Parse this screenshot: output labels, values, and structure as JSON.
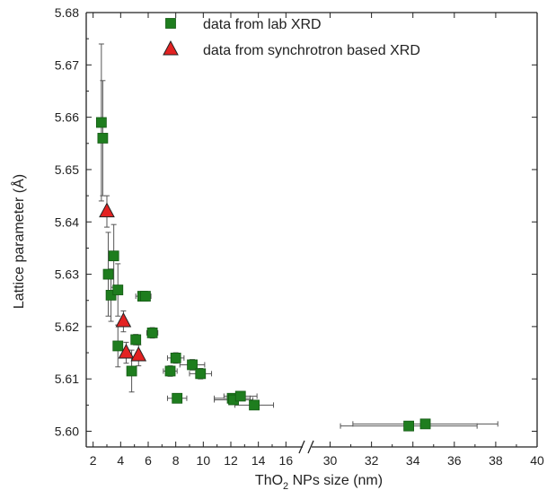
{
  "chart_data": {
    "type": "scatter",
    "title": "",
    "xlabel": {
      "prefix": "ThO",
      "subscript": "2",
      "suffix": " NPs size (nm)"
    },
    "ylabel": "Lattice parameter  (Å)",
    "x_axis_broken": true,
    "x_break_after": 16,
    "x_break_before": 30,
    "xlim_left": [
      1.5,
      16.5
    ],
    "xlim_right": [
      29.5,
      40
    ],
    "ylim": [
      5.597,
      5.68
    ],
    "x_ticks_left": [
      "2",
      "4",
      "6",
      "8",
      "10",
      "12",
      "14",
      "16"
    ],
    "x_ticks_right": [
      "30",
      "32",
      "34",
      "36",
      "38",
      "40"
    ],
    "y_ticks": [
      "5.60",
      "5.61",
      "5.62",
      "5.63",
      "5.64",
      "5.65",
      "5.66",
      "5.67",
      "5.68"
    ],
    "legend_position": "top-left",
    "series": [
      {
        "name": "data from lab XRD",
        "marker": "square",
        "color": "#1e7d1e",
        "points": [
          {
            "x": 2.6,
            "y": 5.659,
            "yerr": 0.015,
            "xerr": 0
          },
          {
            "x": 2.7,
            "y": 5.656,
            "yerr": 0.011,
            "xerr": 0
          },
          {
            "x": 3.1,
            "y": 5.63,
            "yerr": 0.008,
            "xerr": 0
          },
          {
            "x": 3.3,
            "y": 5.626,
            "yerr": 0.005,
            "xerr": 0
          },
          {
            "x": 3.5,
            "y": 5.6335,
            "yerr": 0.006,
            "xerr": 0
          },
          {
            "x": 3.8,
            "y": 5.627,
            "yerr": 0.005,
            "xerr": 0
          },
          {
            "x": 3.8,
            "y": 5.6163,
            "yerr": 0.004,
            "xerr": 0
          },
          {
            "x": 4.8,
            "y": 5.6115,
            "yerr": 0.004,
            "xerr": 0
          },
          {
            "x": 5.1,
            "y": 5.6175,
            "yerr": 0.001,
            "xerr": 0.3
          },
          {
            "x": 5.6,
            "y": 5.6258,
            "yerr": 0.0005,
            "xerr": 0.5
          },
          {
            "x": 5.8,
            "y": 5.6258,
            "yerr": 0.0005,
            "xerr": 0.4
          },
          {
            "x": 6.3,
            "y": 5.6188,
            "yerr": 0.001,
            "xerr": 0.4
          },
          {
            "x": 7.6,
            "y": 5.6115,
            "yerr": 0.001,
            "xerr": 0.5
          },
          {
            "x": 8.0,
            "y": 5.614,
            "yerr": 0.001,
            "xerr": 0.6
          },
          {
            "x": 8.1,
            "y": 5.6063,
            "yerr": 0.0005,
            "xerr": 0.7
          },
          {
            "x": 9.2,
            "y": 5.6127,
            "yerr": 0.001,
            "xerr": 0.9
          },
          {
            "x": 9.8,
            "y": 5.611,
            "yerr": 0.001,
            "xerr": 0.8
          },
          {
            "x": 12.1,
            "y": 5.6063,
            "yerr": 0.0005,
            "xerr": 1.3
          },
          {
            "x": 12.2,
            "y": 5.606,
            "yerr": 0.0005,
            "xerr": 1.4
          },
          {
            "x": 12.7,
            "y": 5.6067,
            "yerr": 0.0005,
            "xerr": 1.2
          },
          {
            "x": 13.7,
            "y": 5.605,
            "yerr": 0.0005,
            "xerr": 1.4
          },
          {
            "x": 33.8,
            "y": 5.601,
            "yerr": 0.0003,
            "xerr": 3.3
          },
          {
            "x": 34.6,
            "y": 5.6014,
            "yerr": 0.0003,
            "xerr": 3.5
          }
        ]
      },
      {
        "name": "data from synchrotron based XRD",
        "marker": "triangle",
        "color": "#e32222",
        "points": [
          {
            "x": 3.0,
            "y": 5.642,
            "yerr": 0.003,
            "xerr": 0
          },
          {
            "x": 4.2,
            "y": 5.621,
            "yerr": 0.002,
            "xerr": 0
          },
          {
            "x": 4.4,
            "y": 5.615,
            "yerr": 0.002,
            "xerr": 0
          },
          {
            "x": 5.3,
            "y": 5.6145,
            "yerr": 0.002,
            "xerr": 0
          }
        ]
      }
    ]
  }
}
